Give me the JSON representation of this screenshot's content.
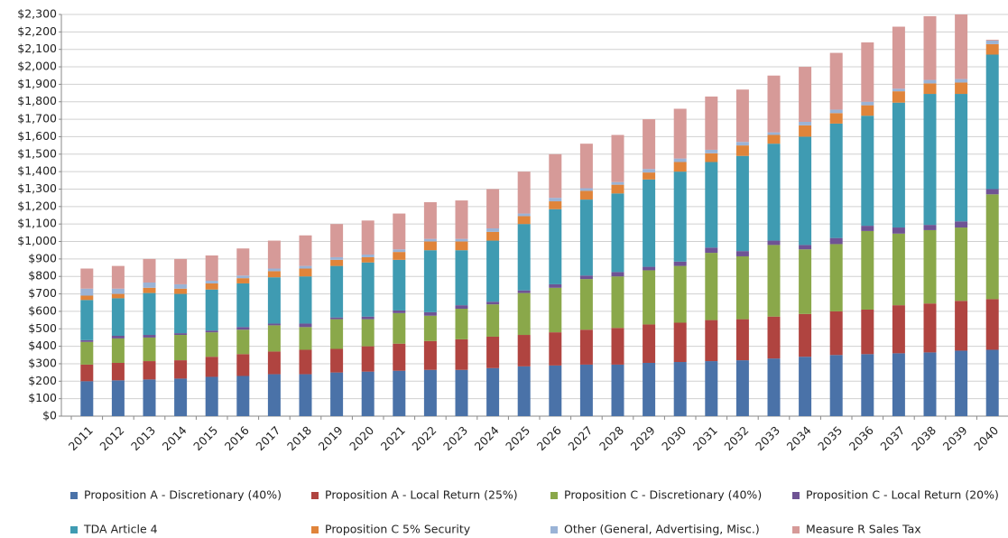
{
  "chart_data": {
    "type": "stacked_bar",
    "categories": [
      "2011",
      "2012",
      "2013",
      "2014",
      "2015",
      "2016",
      "2017",
      "2018",
      "2019",
      "2020",
      "2021",
      "2022",
      "2023",
      "2024",
      "2025",
      "2026",
      "2027",
      "2028",
      "2029",
      "2030",
      "2031",
      "2032",
      "2033",
      "2034",
      "2035",
      "2036",
      "2037",
      "2038",
      "2039",
      "2040"
    ],
    "series": [
      {
        "name": "Proposition A - Discretionary (40%)",
        "color": "#4a72a8",
        "values": [
          200,
          205,
          210,
          215,
          225,
          230,
          240,
          240,
          250,
          255,
          260,
          265,
          265,
          275,
          285,
          290,
          295,
          295,
          305,
          310,
          315,
          320,
          330,
          340,
          350,
          355,
          360,
          365,
          375,
          380
        ]
      },
      {
        "name": "Proposition A - Local Return (25%)",
        "color": "#b04440",
        "values": [
          95,
          100,
          105,
          105,
          115,
          125,
          130,
          140,
          135,
          145,
          155,
          165,
          175,
          180,
          180,
          190,
          200,
          210,
          220,
          225,
          235,
          235,
          240,
          245,
          250,
          255,
          275,
          280,
          285,
          290
        ]
      },
      {
        "name": "Proposition C - Discretionary (40%)",
        "color": "#8aa84a",
        "values": [
          130,
          140,
          135,
          145,
          140,
          140,
          150,
          130,
          170,
          155,
          175,
          145,
          175,
          185,
          240,
          255,
          290,
          295,
          310,
          325,
          385,
          360,
          410,
          370,
          385,
          450,
          410,
          420,
          420,
          600
        ]
      },
      {
        "name": "Proposition C - Local Return (20%)",
        "color": "#6f5394",
        "values": [
          10,
          15,
          15,
          10,
          10,
          15,
          10,
          20,
          10,
          15,
          15,
          20,
          20,
          15,
          15,
          20,
          20,
          25,
          20,
          25,
          30,
          30,
          25,
          25,
          35,
          30,
          35,
          30,
          35,
          30
        ]
      },
      {
        "name": "TDA Article 4",
        "color": "#3f9bb2",
        "values": [
          230,
          215,
          240,
          225,
          235,
          250,
          265,
          270,
          295,
          310,
          290,
          355,
          315,
          350,
          380,
          430,
          435,
          450,
          500,
          515,
          490,
          545,
          555,
          620,
          655,
          630,
          715,
          750,
          730,
          770
        ]
      },
      {
        "name": "Proposition C 5% Security",
        "color": "#e0843a",
        "values": [
          25,
          25,
          30,
          30,
          35,
          30,
          35,
          45,
          35,
          30,
          45,
          50,
          50,
          50,
          45,
          45,
          50,
          50,
          40,
          55,
          50,
          60,
          50,
          65,
          60,
          60,
          65,
          60,
          65,
          60
        ]
      },
      {
        "name": "Other (General, Advertising, Misc.)",
        "color": "#9ab3d6",
        "values": [
          40,
          30,
          30,
          25,
          15,
          15,
          15,
          15,
          15,
          15,
          15,
          15,
          15,
          20,
          15,
          20,
          15,
          15,
          20,
          20,
          20,
          20,
          15,
          20,
          20,
          20,
          15,
          20,
          20,
          20
        ]
      },
      {
        "name": "Measure R Sales Tax",
        "color": "#d69a98",
        "values": [
          115,
          130,
          135,
          145,
          145,
          155,
          160,
          175,
          190,
          195,
          205,
          210,
          220,
          225,
          240,
          250,
          255,
          270,
          285,
          285,
          305,
          300,
          325,
          315,
          325,
          340,
          355,
          365,
          370,
          5
        ]
      }
    ],
    "ylim": [
      0,
      2300
    ],
    "yticks": [
      {
        "value": 0,
        "label": "$0"
      },
      {
        "value": 100,
        "label": "$100"
      },
      {
        "value": 200,
        "label": "$200"
      },
      {
        "value": 300,
        "label": "$300"
      },
      {
        "value": 400,
        "label": "$400"
      },
      {
        "value": 500,
        "label": "$500"
      },
      {
        "value": 600,
        "label": "$600"
      },
      {
        "value": 700,
        "label": "$700"
      },
      {
        "value": 800,
        "label": "$800"
      },
      {
        "value": 900,
        "label": "$900"
      },
      {
        "value": 1000,
        "label": "$1,000"
      },
      {
        "value": 1100,
        "label": "$1,100"
      },
      {
        "value": 1200,
        "label": "$1,200"
      },
      {
        "value": 1300,
        "label": "$1,300"
      },
      {
        "value": 1400,
        "label": "$1,400"
      },
      {
        "value": 1500,
        "label": "$1,500"
      },
      {
        "value": 1600,
        "label": "$1,600"
      },
      {
        "value": 1700,
        "label": "$1,700"
      },
      {
        "value": 1800,
        "label": "$1,800"
      },
      {
        "value": 1900,
        "label": "$1,900"
      },
      {
        "value": 2000,
        "label": "$2,000"
      },
      {
        "value": 2100,
        "label": "$2,100"
      },
      {
        "value": 2200,
        "label": "$2,200"
      },
      {
        "value": 2300,
        "label": "$2,300"
      }
    ],
    "grid": true
  }
}
